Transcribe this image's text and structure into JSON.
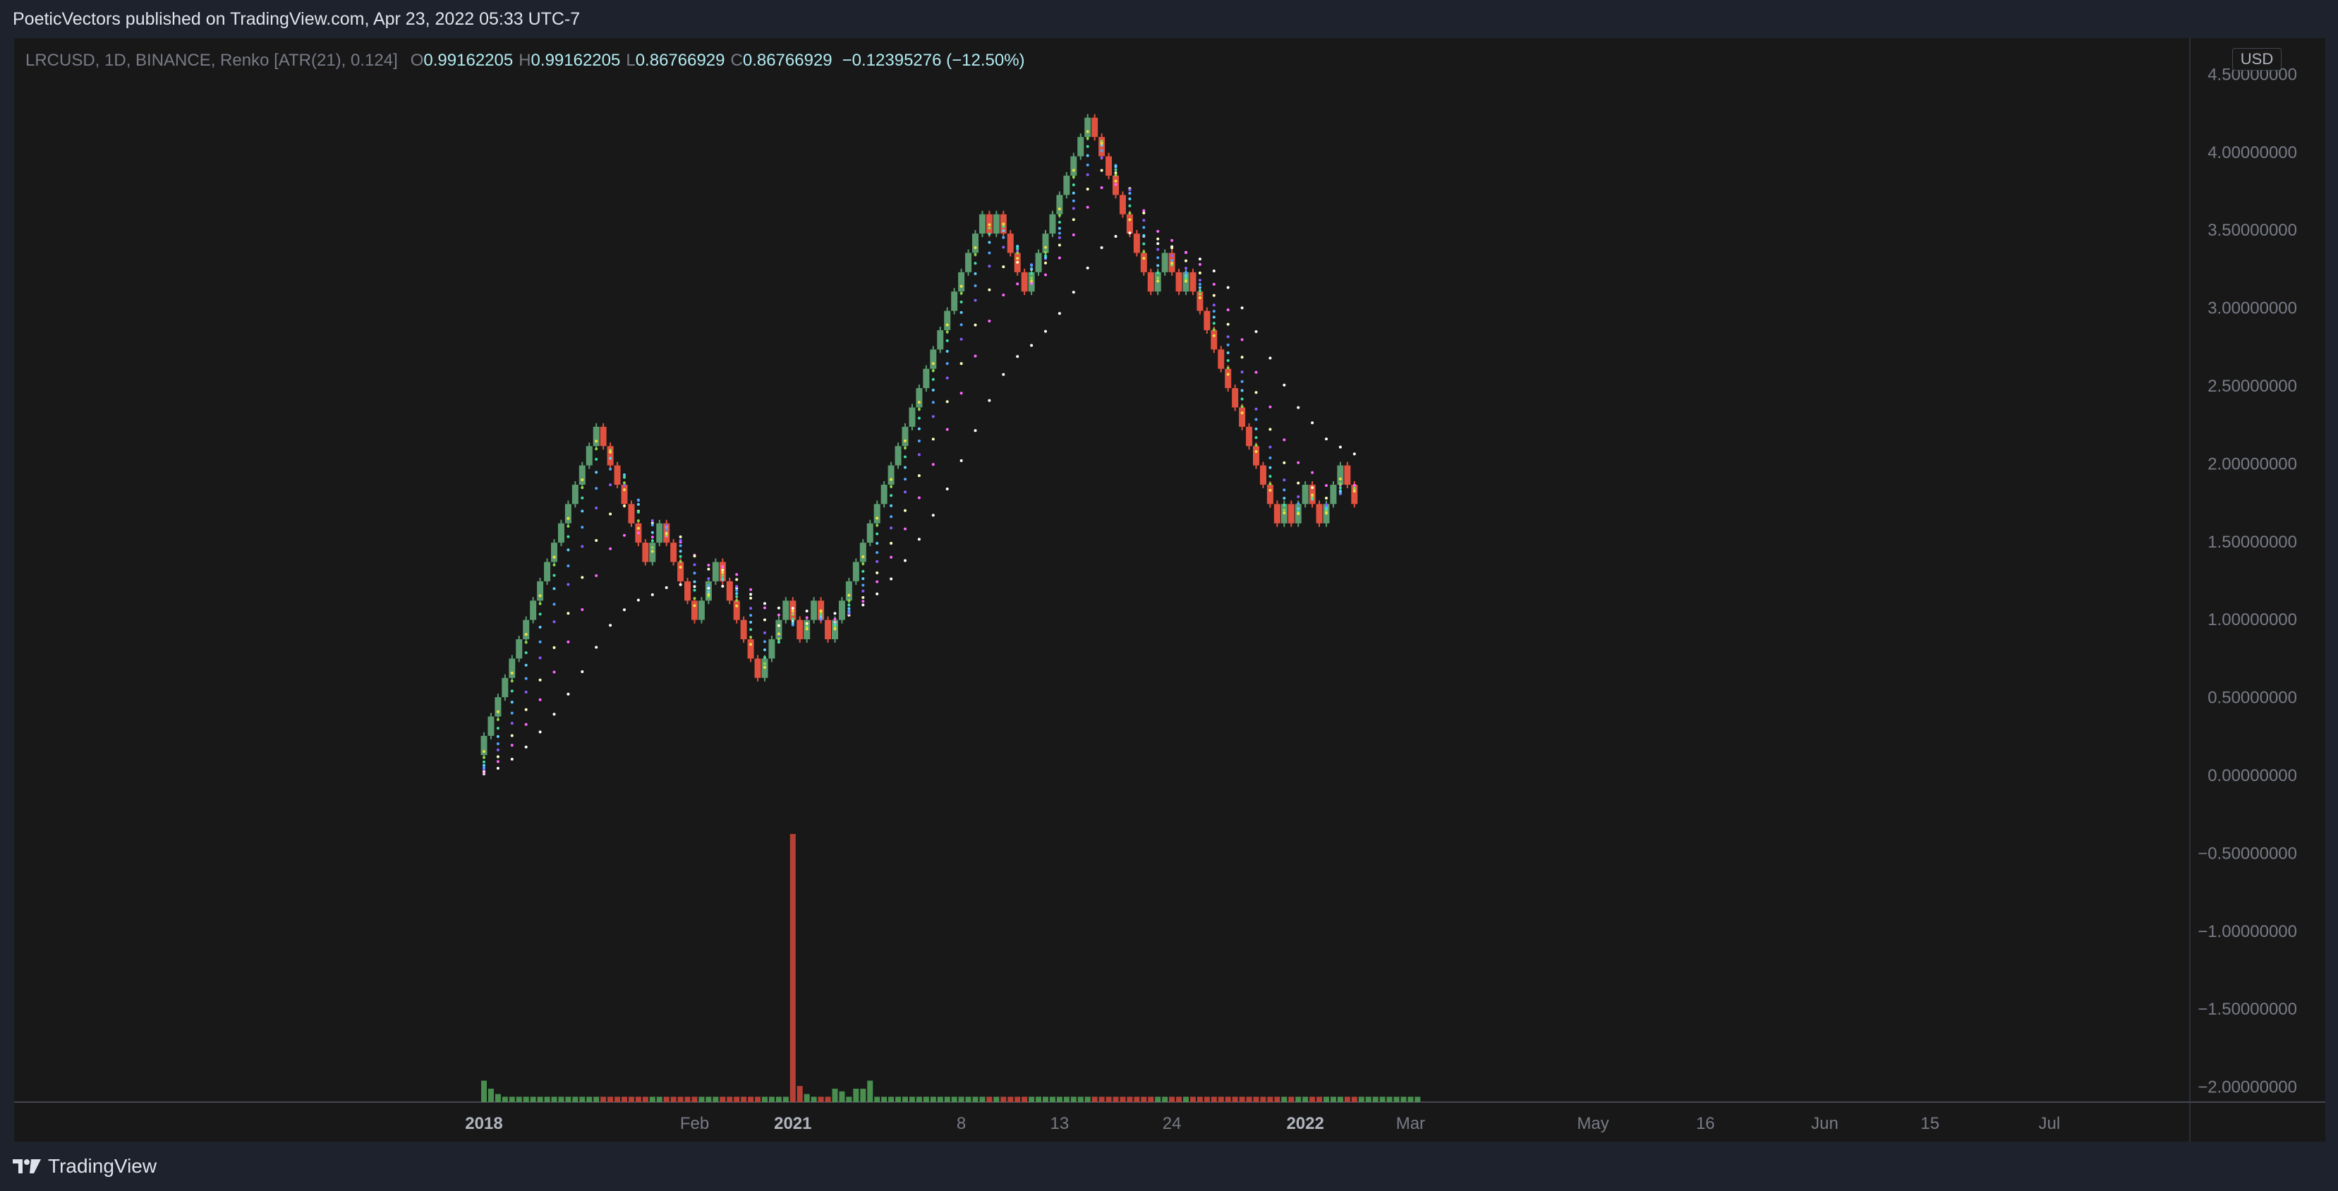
{
  "header": {
    "text": "PoeticVectors published on TradingView.com, Apr 23, 2022 05:33 UTC-7"
  },
  "legend": {
    "symbol": "LRCUSD, 1D, BINANCE, Renko [ATR(21), 0.124]",
    "open_label": "O",
    "open": "0.99162205",
    "high_label": "H",
    "high": "0.99162205",
    "low_label": "L",
    "low": "0.86766929",
    "close_label": "C",
    "close": "0.86766929",
    "change": "−0.12395276 (−12.50%)"
  },
  "currency": "USD",
  "footer": {
    "brand": "TradingView"
  },
  "colors": {
    "background": "#181818",
    "frame": "#1e222d",
    "up": "#5a9a6e",
    "down": "#e0513f",
    "axis_text": "#787b86",
    "volume_up": "#4f9b55",
    "volume_down": "#c6453a"
  },
  "chart_data": {
    "type": "candlestick",
    "chart_style": "renko",
    "symbol": "LRCUSD",
    "brick_size": 0.124,
    "ylim": [
      -2.1,
      4.6
    ],
    "y_ticks": [
      "4.50000000",
      "4.00000000",
      "3.50000000",
      "3.00000000",
      "2.50000000",
      "2.00000000",
      "1.50000000",
      "1.00000000",
      "0.50000000",
      "0.00000000",
      "−0.50000000",
      "−1.00000000",
      "−1.50000000",
      "−2.00000000"
    ],
    "y_tick_values": [
      4.5,
      4.0,
      3.5,
      3.0,
      2.5,
      2.0,
      1.5,
      1.0,
      0.5,
      0.0,
      -0.5,
      -1.0,
      -1.5,
      -2.0
    ],
    "x_ticks": [
      "2018",
      "Feb",
      "2021",
      "8",
      "13",
      "24",
      "2022",
      "Mar",
      "May",
      "16",
      "Jun",
      "15",
      "Jul"
    ],
    "x_tick_bold": [
      true,
      false,
      true,
      false,
      false,
      false,
      true,
      false,
      false,
      false,
      false,
      false,
      false
    ],
    "x_tick_index": [
      0,
      30,
      44,
      68,
      82,
      98,
      117,
      132,
      158,
      174,
      191,
      206,
      223
    ],
    "slot_count": 240,
    "renko_start": 0.13,
    "bricks_dir": [
      1,
      1,
      1,
      1,
      1,
      1,
      1,
      1,
      1,
      1,
      1,
      1,
      1,
      1,
      1,
      1,
      1,
      -1,
      -1,
      -1,
      -1,
      -1,
      -1,
      -1,
      1,
      1,
      -1,
      -1,
      -1,
      -1,
      -1,
      1,
      1,
      1,
      -1,
      -1,
      -1,
      -1,
      -1,
      -1,
      1,
      1,
      1,
      1,
      -1,
      -1,
      1,
      1,
      -1,
      -1,
      1,
      1,
      1,
      1,
      1,
      1,
      1,
      1,
      1,
      1,
      1,
      1,
      1,
      1,
      1,
      1,
      1,
      1,
      1,
      1,
      1,
      1,
      -1,
      1,
      -1,
      -1,
      -1,
      -1,
      1,
      1,
      1,
      1,
      1,
      1,
      1,
      1,
      1,
      -1,
      -1,
      -1,
      -1,
      -1,
      -1,
      -1,
      -1,
      -1,
      1,
      1,
      -1,
      -1,
      1,
      -1,
      -1,
      -1,
      -1,
      -1,
      -1,
      -1,
      -1,
      -1,
      -1,
      -1,
      -1,
      -1,
      1,
      -1,
      1,
      1,
      -1,
      -1,
      1,
      1,
      1,
      -1,
      -1
    ],
    "volume_values": [
      0.08,
      0.05,
      0.03,
      0.02,
      0.02,
      0.02,
      0.02,
      0.02,
      0.02,
      0.02,
      0.02,
      0.02,
      0.02,
      0.02,
      0.02,
      0.02,
      0.02,
      0.02,
      0.02,
      0.02,
      0.02,
      0.02,
      0.02,
      0.02,
      0.02,
      0.02,
      0.02,
      0.02,
      0.02,
      0.02,
      0.02,
      0.02,
      0.02,
      0.02,
      0.02,
      0.02,
      0.02,
      0.02,
      0.02,
      0.02,
      0.02,
      0.02,
      0.02,
      0.02,
      1.0,
      0.06,
      0.03,
      0.02,
      0.02,
      0.02,
      0.05,
      0.04,
      0.02,
      0.05,
      0.05,
      0.08,
      0.02,
      0.02,
      0.02,
      0.02,
      0.02,
      0.02,
      0.02,
      0.02,
      0.02,
      0.02,
      0.02,
      0.02,
      0.02,
      0.02,
      0.02,
      0.02,
      0.02,
      0.02,
      0.02,
      0.02,
      0.02,
      0.02,
      0.02,
      0.02,
      0.02,
      0.02,
      0.02,
      0.02,
      0.02,
      0.02,
      0.02,
      0.02,
      0.02,
      0.02,
      0.02,
      0.02,
      0.02,
      0.02,
      0.02,
      0.02,
      0.02,
      0.02,
      0.02,
      0.02,
      0.02,
      0.02,
      0.02,
      0.02,
      0.02,
      0.02,
      0.02,
      0.02,
      0.02,
      0.02,
      0.02,
      0.02,
      0.02,
      0.02,
      0.02,
      0.02,
      0.02,
      0.02,
      0.02,
      0.02,
      0.02,
      0.02,
      0.02,
      0.02,
      0.02,
      0.02,
      0.02,
      0.02,
      0.02,
      0.02,
      0.02,
      0.02,
      0.02,
      0.02
    ],
    "overlay_dot_series": [
      {
        "color": "#ffffff",
        "weights": [
          0.05,
          0.35
        ]
      },
      {
        "color": "#ff66ff",
        "weights": [
          0.1,
          0.6
        ]
      },
      {
        "color": "#ffffc0",
        "weights": [
          0.14,
          0.75
        ]
      },
      {
        "color": "#8a5cff",
        "weights": [
          0.2,
          0.85
        ]
      },
      {
        "color": "#4ea6ff",
        "weights": [
          0.26,
          0.9
        ]
      },
      {
        "color": "#5fd0ff",
        "weights": [
          0.34,
          0.93
        ]
      },
      {
        "color": "#40e0a0",
        "weights": [
          0.45,
          0.95
        ]
      },
      {
        "color": "#8bd646",
        "weights": [
          0.6,
          0.97
        ]
      },
      {
        "color": "#f0e040",
        "weights": [
          0.8,
          0.98
        ]
      }
    ]
  }
}
